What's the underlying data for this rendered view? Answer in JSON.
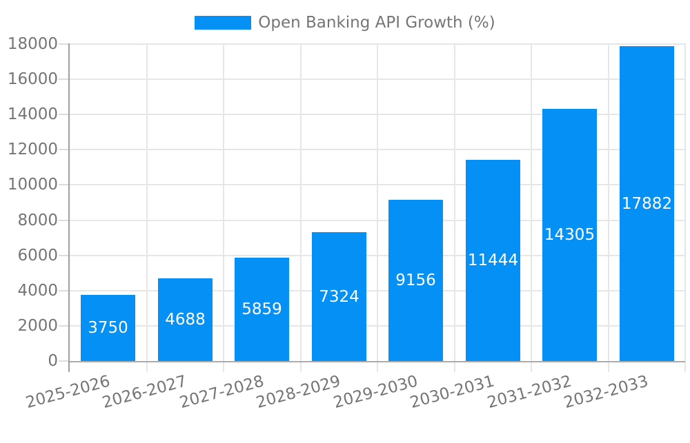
{
  "chart_data": {
    "type": "bar",
    "title": "Open Banking API Growth (%)",
    "series": [
      {
        "name": "Open Banking API Growth (%)",
        "values": [
          3750,
          4688,
          5859,
          7324,
          9156,
          11444,
          14305,
          17882
        ]
      }
    ],
    "categories": [
      "2025-2026",
      "2026-2027",
      "2027-2028",
      "2028-2029",
      "2029-2030",
      "2030-2031",
      "2031-2032",
      "2032-2033"
    ],
    "values": [
      3750,
      4688,
      5859,
      7324,
      9156,
      11444,
      14305,
      17882
    ],
    "value_labels": [
      "3750",
      "4688",
      "5859",
      "7324",
      "9156",
      "11444",
      "14305",
      "17882"
    ],
    "xlabel": "",
    "ylabel": "",
    "ylim": [
      0,
      18000
    ],
    "yticks": [
      0,
      2000,
      4000,
      6000,
      8000,
      10000,
      12000,
      14000,
      16000,
      18000
    ],
    "grid": true,
    "legend_position": "top",
    "x_tick_rotation_deg": -15,
    "colors": {
      "bar": "#0490f5",
      "value_label": "#ffffff",
      "axis_text": "#757575",
      "title_text": "#757575",
      "grid": "#e6e6e6",
      "tick": "#dcdcdc",
      "axis_line_y": "#9e9e9e",
      "axis_line_x": "#ababab",
      "background": "#ffffff"
    }
  }
}
